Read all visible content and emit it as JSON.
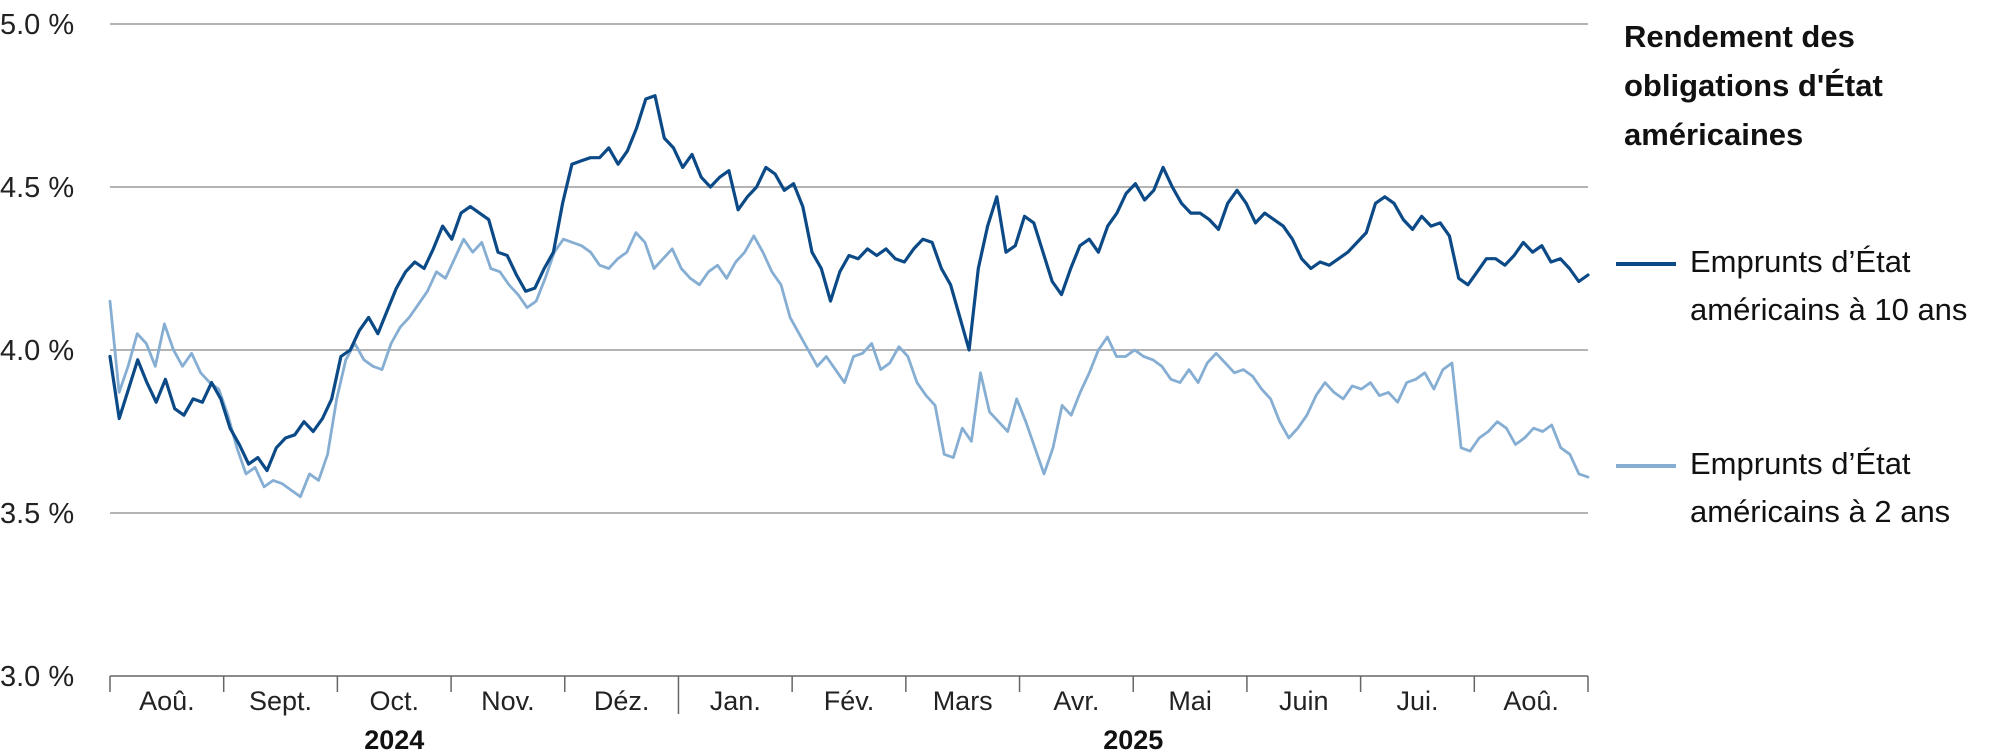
{
  "title": "Rendement des obligations d'État américaines",
  "colors": {
    "series_10y": "#0b4a86",
    "series_2y": "#86aed3",
    "grid": "#9a9a9a",
    "axis": "#666666"
  },
  "chart_data": {
    "type": "line",
    "ylim": [
      3.0,
      5.0
    ],
    "yticks": [
      {
        "value": 3.0,
        "label": "3.0 %"
      },
      {
        "value": 3.5,
        "label": "3.5 %"
      },
      {
        "value": 4.0,
        "label": "4.0 %"
      },
      {
        "value": 4.5,
        "label": "4.5 %"
      },
      {
        "value": 5.0,
        "label": "5.0 %"
      }
    ],
    "grid": true,
    "legend_position": "right",
    "months": [
      "Aoû.",
      "Sept.",
      "Oct.",
      "Nov.",
      "Déz.",
      "Jan.",
      "Fév.",
      "Mars",
      "Avr.",
      "Mai",
      "Juin",
      "Jui.",
      "Aoû."
    ],
    "years": [
      {
        "label": "2024",
        "month_from": 0,
        "month_to": 4
      },
      {
        "label": "2025",
        "month_from": 5,
        "month_to": 12
      }
    ],
    "series": [
      {
        "name": "Emprunts d’État américains à 10 ans",
        "key": "10y",
        "values": [
          3.98,
          3.79,
          3.88,
          3.97,
          3.9,
          3.84,
          3.91,
          3.82,
          3.8,
          3.85,
          3.84,
          3.9,
          3.85,
          3.76,
          3.71,
          3.65,
          3.67,
          3.63,
          3.7,
          3.73,
          3.74,
          3.78,
          3.75,
          3.79,
          3.85,
          3.98,
          4.0,
          4.06,
          4.1,
          4.05,
          4.12,
          4.19,
          4.24,
          4.27,
          4.25,
          4.31,
          4.38,
          4.34,
          4.42,
          4.44,
          4.42,
          4.4,
          4.3,
          4.29,
          4.23,
          4.18,
          4.19,
          4.25,
          4.3,
          4.45,
          4.57,
          4.58,
          4.59,
          4.59,
          4.62,
          4.57,
          4.61,
          4.68,
          4.77,
          4.78,
          4.65,
          4.62,
          4.56,
          4.6,
          4.53,
          4.5,
          4.53,
          4.55,
          4.43,
          4.47,
          4.5,
          4.56,
          4.54,
          4.49,
          4.51,
          4.44,
          4.3,
          4.25,
          4.15,
          4.24,
          4.29,
          4.28,
          4.31,
          4.29,
          4.31,
          4.28,
          4.27,
          4.31,
          4.34,
          4.33,
          4.25,
          4.2,
          4.1,
          4.0,
          4.25,
          4.38,
          4.47,
          4.3,
          4.32,
          4.41,
          4.39,
          4.3,
          4.21,
          4.17,
          4.25,
          4.32,
          4.34,
          4.3,
          4.38,
          4.42,
          4.48,
          4.51,
          4.46,
          4.49,
          4.56,
          4.5,
          4.45,
          4.42,
          4.42,
          4.4,
          4.37,
          4.45,
          4.49,
          4.45,
          4.39,
          4.42,
          4.4,
          4.38,
          4.34,
          4.28,
          4.25,
          4.27,
          4.26,
          4.28,
          4.3,
          4.33,
          4.36,
          4.45,
          4.47,
          4.45,
          4.4,
          4.37,
          4.41,
          4.38,
          4.39,
          4.35,
          4.22,
          4.2,
          4.24,
          4.28,
          4.28,
          4.26,
          4.29,
          4.33,
          4.3,
          4.32,
          4.27,
          4.28,
          4.25,
          4.21,
          4.23
        ]
      },
      {
        "name": "Emprunts d’État américains à 2 ans",
        "key": "2y",
        "values": [
          4.15,
          3.87,
          3.95,
          4.05,
          4.02,
          3.95,
          4.08,
          4.0,
          3.95,
          3.99,
          3.93,
          3.9,
          3.88,
          3.8,
          3.7,
          3.62,
          3.64,
          3.58,
          3.6,
          3.59,
          3.57,
          3.55,
          3.62,
          3.6,
          3.68,
          3.85,
          3.97,
          4.02,
          3.97,
          3.95,
          3.94,
          4.02,
          4.07,
          4.1,
          4.14,
          4.18,
          4.24,
          4.22,
          4.28,
          4.34,
          4.3,
          4.33,
          4.25,
          4.24,
          4.2,
          4.17,
          4.13,
          4.15,
          4.22,
          4.3,
          4.34,
          4.33,
          4.32,
          4.3,
          4.26,
          4.25,
          4.28,
          4.3,
          4.36,
          4.33,
          4.25,
          4.28,
          4.31,
          4.25,
          4.22,
          4.2,
          4.24,
          4.26,
          4.22,
          4.27,
          4.3,
          4.35,
          4.3,
          4.24,
          4.2,
          4.1,
          4.05,
          4.0,
          3.95,
          3.98,
          3.94,
          3.9,
          3.98,
          3.99,
          4.02,
          3.94,
          3.96,
          4.01,
          3.98,
          3.9,
          3.86,
          3.83,
          3.68,
          3.67,
          3.76,
          3.72,
          3.93,
          3.81,
          3.78,
          3.75,
          3.85,
          3.78,
          3.7,
          3.62,
          3.7,
          3.83,
          3.8,
          3.87,
          3.93,
          4.0,
          4.04,
          3.98,
          3.98,
          4.0,
          3.98,
          3.97,
          3.95,
          3.91,
          3.9,
          3.94,
          3.9,
          3.96,
          3.99,
          3.96,
          3.93,
          3.94,
          3.92,
          3.88,
          3.85,
          3.78,
          3.73,
          3.76,
          3.8,
          3.86,
          3.9,
          3.87,
          3.85,
          3.89,
          3.88,
          3.9,
          3.86,
          3.87,
          3.84,
          3.9,
          3.91,
          3.93,
          3.88,
          3.94,
          3.96,
          3.7,
          3.69,
          3.73,
          3.75,
          3.78,
          3.76,
          3.71,
          3.73,
          3.76,
          3.75,
          3.77,
          3.7,
          3.68,
          3.62,
          3.61
        ]
      }
    ]
  }
}
